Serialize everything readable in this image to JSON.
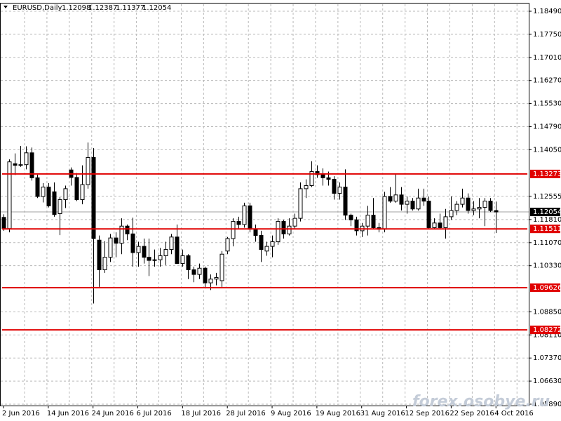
{
  "chart_data": {
    "type": "candlestick",
    "title": "EURUSD,Daily",
    "watermark": "forex.osobye.ru",
    "categories": [
      "2 Jun 2016",
      null,
      null,
      null,
      null,
      null,
      null,
      null,
      "14 Jun 2016",
      null,
      null,
      null,
      null,
      null,
      null,
      null,
      "24 Jun 2016",
      null,
      null,
      null,
      null,
      null,
      null,
      null,
      "6 Jul 2016",
      null,
      null,
      null,
      null,
      null,
      null,
      null,
      "18 Jul 2016",
      null,
      null,
      null,
      null,
      null,
      null,
      null,
      "28 Jul 2016",
      null,
      null,
      null,
      null,
      null,
      null,
      null,
      "9 Aug 2016",
      null,
      null,
      null,
      null,
      null,
      null,
      null,
      "19 Aug 2016",
      null,
      null,
      null,
      null,
      null,
      null,
      null,
      "31 Aug 2016",
      null,
      null,
      null,
      null,
      null,
      null,
      null,
      "12 Sep 2016",
      null,
      null,
      null,
      null,
      null,
      null,
      null,
      "22 Sep 2016",
      null,
      null,
      null,
      null,
      null,
      null,
      null,
      "4 Oct 2016"
    ],
    "open": [
      1.1188,
      1.1152,
      1.136,
      1.1355,
      1.1357,
      1.1395,
      1.1315,
      1.1255,
      1.1285,
      1.127,
      1.12,
      1.1245,
      1.134,
      1.1316,
      1.1245,
      1.1293,
      1.138,
      1.1115,
      1.102,
      1.106,
      1.1122,
      1.1105,
      1.116,
      1.1135,
      1.1075,
      1.1095,
      1.106,
      1.105,
      1.1052,
      1.1065,
      1.1085,
      1.1125,
      1.104,
      1.1065,
      1.102,
      1.1005,
      1.1025,
      1.0978,
      1.099,
      1.0985,
      1.108,
      1.112,
      1.1175,
      1.1165,
      1.1225,
      1.115,
      1.113,
      1.108,
      1.1095,
      1.111,
      1.1175,
      1.1135,
      1.116,
      1.1185,
      1.128,
      1.129,
      1.1335,
      1.1325,
      1.1315,
      1.131,
      1.1265,
      1.1285,
      1.1195,
      1.118,
      1.1145,
      1.116,
      1.1195,
      1.1155,
      1.115,
      1.1255,
      1.124,
      1.126,
      1.123,
      1.124,
      1.1215,
      1.125,
      1.124,
      1.1155,
      1.117,
      1.1155,
      1.119,
      1.121,
      1.123,
      1.125,
      1.121,
      1.1215,
      1.122,
      1.124,
      1.12098
    ],
    "high": [
      1.1198,
      1.1374,
      1.1393,
      1.1417,
      1.1416,
      1.1412,
      1.1325,
      1.1298,
      1.1298,
      1.13,
      1.1253,
      1.129,
      1.1348,
      1.133,
      1.1355,
      1.1428,
      1.141,
      1.113,
      1.1112,
      1.1135,
      1.114,
      1.1185,
      1.1165,
      1.1187,
      1.111,
      1.112,
      1.112,
      1.1085,
      1.109,
      1.111,
      1.1135,
      1.1165,
      1.1085,
      1.107,
      1.103,
      1.104,
      1.103,
      1.1005,
      1.101,
      1.108,
      1.1125,
      1.1185,
      1.119,
      1.1235,
      1.1235,
      1.1165,
      1.1145,
      1.111,
      1.113,
      1.1185,
      1.118,
      1.1185,
      1.12,
      1.13,
      1.131,
      1.1368,
      1.1355,
      1.1345,
      1.1335,
      1.132,
      1.13,
      1.1342,
      1.12,
      1.119,
      1.117,
      1.1225,
      1.125,
      1.117,
      1.127,
      1.1285,
      1.1327,
      1.1285,
      1.1255,
      1.125,
      1.128,
      1.128,
      1.1255,
      1.1185,
      1.12,
      1.1215,
      1.1255,
      1.124,
      1.128,
      1.1265,
      1.124,
      1.125,
      1.125,
      1.125,
      1.12387
    ],
    "low": [
      1.1145,
      1.114,
      1.1324,
      1.135,
      1.1342,
      1.1306,
      1.125,
      1.1236,
      1.122,
      1.119,
      1.1131,
      1.1218,
      1.129,
      1.124,
      1.123,
      1.128,
      1.0912,
      1.0965,
      1.101,
      1.1045,
      1.106,
      1.107,
      1.1115,
      1.103,
      1.103,
      1.104,
      1.1,
      1.103,
      1.103,
      1.1035,
      1.107,
      1.104,
      1.103,
      1.099,
      1.098,
      1.099,
      1.096,
      1.0955,
      1.097,
      1.0965,
      1.107,
      1.1095,
      1.115,
      1.1155,
      1.114,
      1.111,
      1.1045,
      1.1065,
      1.106,
      1.11,
      1.112,
      1.113,
      1.115,
      1.1175,
      1.125,
      1.1285,
      1.1315,
      1.129,
      1.129,
      1.1245,
      1.1245,
      1.118,
      1.116,
      1.113,
      1.1125,
      1.113,
      1.115,
      1.114,
      1.114,
      1.1235,
      1.1235,
      1.121,
      1.12,
      1.121,
      1.121,
      1.1225,
      1.115,
      1.115,
      1.115,
      1.112,
      1.118,
      1.1195,
      1.122,
      1.12,
      1.1195,
      1.1185,
      1.116,
      1.1205,
      1.11377
    ],
    "close": [
      1.1152,
      1.1366,
      1.1355,
      1.1357,
      1.1395,
      1.1315,
      1.1255,
      1.1285,
      1.1225,
      1.1197,
      1.1245,
      1.128,
      1.1316,
      1.1245,
      1.1293,
      1.138,
      1.112,
      1.102,
      1.106,
      1.1122,
      1.1105,
      1.116,
      1.1135,
      1.1075,
      1.1095,
      1.106,
      1.105,
      1.1052,
      1.1065,
      1.1085,
      1.1125,
      1.104,
      1.1065,
      1.102,
      1.1005,
      1.1025,
      1.0978,
      1.099,
      1.0995,
      1.107,
      1.112,
      1.1175,
      1.1165,
      1.1225,
      1.115,
      1.113,
      1.1085,
      1.1095,
      1.111,
      1.1175,
      1.1135,
      1.116,
      1.1185,
      1.128,
      1.129,
      1.1335,
      1.1325,
      1.1315,
      1.131,
      1.1265,
      1.1285,
      1.1195,
      1.118,
      1.1145,
      1.116,
      1.1195,
      1.1155,
      1.115,
      1.1255,
      1.124,
      1.126,
      1.123,
      1.124,
      1.1215,
      1.125,
      1.124,
      1.1155,
      1.117,
      1.1155,
      1.119,
      1.121,
      1.123,
      1.125,
      1.121,
      1.1215,
      1.122,
      1.124,
      1.121,
      1.12054
    ],
    "up_color": "#ffffff",
    "down_color": "#000000",
    "levels": [
      1.13273,
      1.11511,
      1.09626,
      1.08272
    ],
    "level_color": "#e00000",
    "ylim": [
      1.05845,
      1.18738
    ],
    "yticks": [
      {
        "value": 1.1849,
        "label": "1.18490"
      },
      {
        "value": 1.1775,
        "label": "1.17750"
      },
      {
        "value": 1.1701,
        "label": "1.17010"
      },
      {
        "value": 1.1627,
        "label": "1.16270"
      },
      {
        "value": 1.1553,
        "label": "1.15530"
      },
      {
        "value": 1.1479,
        "label": "1.14790"
      },
      {
        "value": 1.1405,
        "label": "1.14050"
      },
      1.12555,
      {
        "value": 1.1181,
        "label": "1.11810"
      },
      {
        "value": 1.1107,
        "label": "1.11070"
      },
      {
        "value": 1.1033,
        "label": "1.10330"
      },
      {
        "value": 1.0885,
        "label": "1.08850"
      },
      {
        "value": 1.0811,
        "label": "1.08110"
      },
      {
        "value": 1.0737,
        "label": "1.07370"
      },
      {
        "value": 1.0663,
        "label": "1.06630"
      },
      {
        "value": 1.0589,
        "label": "1.05890"
      }
    ],
    "grid": true
  }
}
